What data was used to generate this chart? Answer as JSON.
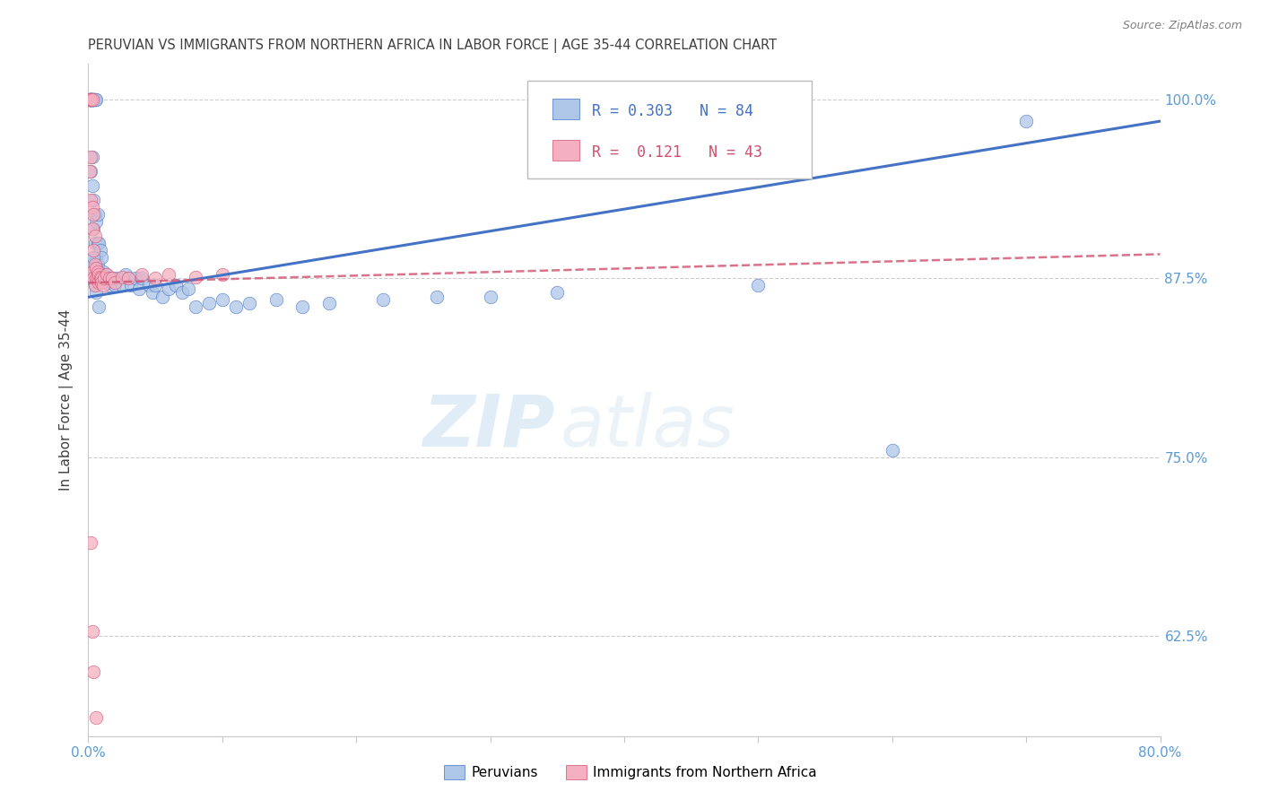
{
  "title": "PERUVIAN VS IMMIGRANTS FROM NORTHERN AFRICA IN LABOR FORCE | AGE 35-44 CORRELATION CHART",
  "source": "Source: ZipAtlas.com",
  "ylabel": "In Labor Force | Age 35-44",
  "xlim": [
    0.0,
    0.8
  ],
  "ylim": [
    0.555,
    1.025
  ],
  "yticks": [
    0.625,
    0.75,
    0.875,
    1.0
  ],
  "ytick_labels": [
    "62.5%",
    "75.0%",
    "87.5%",
    "100.0%"
  ],
  "xticks": [
    0.0,
    0.1,
    0.2,
    0.3,
    0.4,
    0.5,
    0.6,
    0.7,
    0.8
  ],
  "xtick_labels": [
    "0.0%",
    "",
    "",
    "",
    "",
    "",
    "",
    "",
    "80.0%"
  ],
  "blue_color": "#aec6e8",
  "pink_color": "#f4afc0",
  "blue_line_color": "#4472c4",
  "pink_line_color": "#d05070",
  "blue_r": "0.303",
  "blue_n": "84",
  "pink_r": "0.121",
  "pink_n": "43",
  "watermark_zip": "ZIP",
  "watermark_atlas": "atlas",
  "background_color": "#ffffff",
  "grid_color": "#c8c8c8",
  "tick_color": "#5b9bd5",
  "title_color": "#404040",
  "source_color": "#808080",
  "blue_trend": [
    0.862,
    0.985
  ],
  "pink_trend": [
    0.872,
    0.892
  ],
  "blue_x": [
    0.001,
    0.001,
    0.001,
    0.002,
    0.002,
    0.002,
    0.002,
    0.002,
    0.002,
    0.002,
    0.003,
    0.003,
    0.003,
    0.003,
    0.003,
    0.003,
    0.003,
    0.004,
    0.004,
    0.004,
    0.004,
    0.004,
    0.005,
    0.005,
    0.005,
    0.005,
    0.006,
    0.006,
    0.006,
    0.006,
    0.007,
    0.007,
    0.007,
    0.008,
    0.008,
    0.009,
    0.009,
    0.01,
    0.01,
    0.011,
    0.012,
    0.013,
    0.014,
    0.015,
    0.016,
    0.018,
    0.02,
    0.022,
    0.025,
    0.028,
    0.03,
    0.032,
    0.035,
    0.038,
    0.04,
    0.045,
    0.048,
    0.05,
    0.055,
    0.06,
    0.065,
    0.07,
    0.075,
    0.08,
    0.09,
    0.1,
    0.11,
    0.12,
    0.14,
    0.16,
    0.18,
    0.22,
    0.26,
    0.3,
    0.35,
    0.5,
    0.6,
    0.7,
    0.002,
    0.003,
    0.004,
    0.005,
    0.006,
    0.008
  ],
  "blue_y": [
    1.0,
    1.0,
    1.0,
    1.0,
    1.0,
    1.0,
    1.0,
    1.0,
    1.0,
    0.95,
    1.0,
    1.0,
    1.0,
    1.0,
    1.0,
    0.96,
    0.94,
    1.0,
    1.0,
    1.0,
    0.93,
    0.91,
    1.0,
    1.0,
    0.92,
    0.9,
    1.0,
    0.915,
    0.89,
    0.875,
    0.92,
    0.9,
    0.885,
    0.9,
    0.88,
    0.895,
    0.875,
    0.89,
    0.875,
    0.88,
    0.875,
    0.878,
    0.875,
    0.872,
    0.87,
    0.875,
    0.87,
    0.875,
    0.87,
    0.878,
    0.875,
    0.87,
    0.875,
    0.868,
    0.875,
    0.87,
    0.865,
    0.87,
    0.862,
    0.868,
    0.87,
    0.865,
    0.868,
    0.855,
    0.858,
    0.86,
    0.855,
    0.858,
    0.86,
    0.855,
    0.858,
    0.86,
    0.862,
    0.862,
    0.865,
    0.87,
    0.755,
    0.985,
    0.875,
    0.885,
    0.89,
    0.87,
    0.865,
    0.855
  ],
  "pink_x": [
    0.001,
    0.001,
    0.001,
    0.002,
    0.002,
    0.002,
    0.002,
    0.003,
    0.003,
    0.003,
    0.003,
    0.004,
    0.004,
    0.004,
    0.005,
    0.005,
    0.005,
    0.006,
    0.006,
    0.007,
    0.007,
    0.008,
    0.008,
    0.009,
    0.01,
    0.01,
    0.011,
    0.012,
    0.014,
    0.016,
    0.018,
    0.02,
    0.025,
    0.03,
    0.04,
    0.05,
    0.06,
    0.08,
    0.1,
    0.002,
    0.003,
    0.004,
    0.006
  ],
  "pink_y": [
    1.0,
    1.0,
    0.95,
    1.0,
    1.0,
    0.96,
    0.93,
    1.0,
    0.925,
    0.91,
    0.88,
    0.92,
    0.895,
    0.875,
    0.905,
    0.885,
    0.87,
    0.882,
    0.875,
    0.88,
    0.875,
    0.878,
    0.872,
    0.876,
    0.875,
    0.872,
    0.87,
    0.875,
    0.878,
    0.875,
    0.875,
    0.872,
    0.876,
    0.875,
    0.878,
    0.875,
    0.878,
    0.876,
    0.878,
    0.69,
    0.628,
    0.6,
    0.568
  ]
}
